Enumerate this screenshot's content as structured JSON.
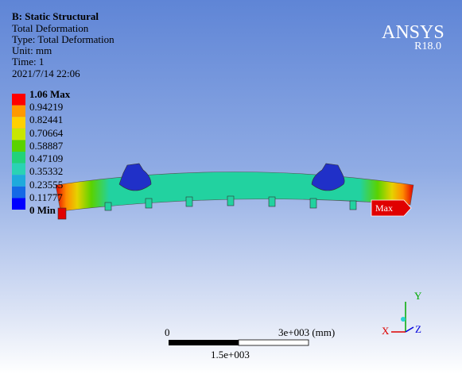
{
  "header": {
    "title": "B: Static Structural",
    "lines": [
      "Total Deformation",
      "Type: Total Deformation",
      "Unit: mm",
      "Time: 1",
      "2021/7/14 22:06"
    ]
  },
  "legend": {
    "labels": [
      "1.06 Max",
      "0.94219",
      "0.82441",
      "0.70664",
      "0.58887",
      "0.47109",
      "0.35332",
      "0.23555",
      "0.11777",
      "0 Min"
    ],
    "colors": [
      "#ff0000",
      "#ff9900",
      "#ffd000",
      "#c8e600",
      "#5ad200",
      "#22d27a",
      "#2ad2b4",
      "#1eaadc",
      "#1469e6",
      "#0000ff"
    ]
  },
  "logo": {
    "brand": "ANSYS",
    "version": "R18.0"
  },
  "probe": "Max",
  "scale_bar": {
    "start": "0",
    "end": "3e+003 (mm)",
    "mid": "1.5e+003"
  },
  "triad": {
    "y": "Y",
    "x": "X",
    "z": "Z"
  }
}
